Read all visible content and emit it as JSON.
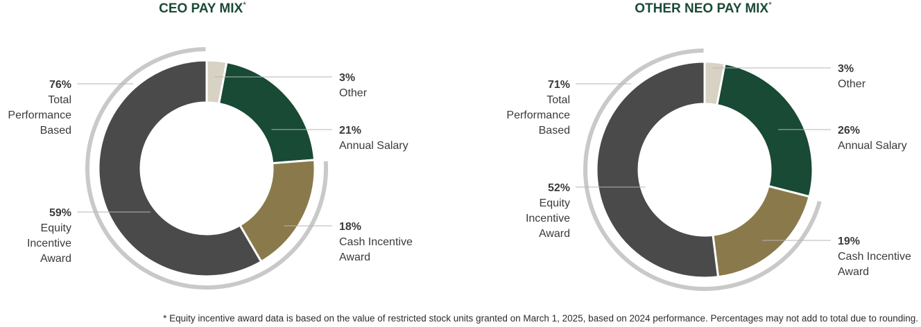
{
  "colors": {
    "title": "#1b4a36",
    "other": "#d8d2c4",
    "annual_salary": "#184a35",
    "cash_incentive": "#8a7a4b",
    "equity": "#4a4a4a",
    "arc": "#c9c9c9",
    "leader": "#b5b5b5",
    "text": "#3a3a3a"
  },
  "chart_data": [
    {
      "type": "pie",
      "title": "CEO PAY MIX",
      "title_mark": "*",
      "slices": [
        {
          "label": "Other",
          "value": 3,
          "pct": "3%"
        },
        {
          "label": "Annual Salary",
          "value": 21,
          "pct": "21%"
        },
        {
          "label": "Cash Incentive Award",
          "value": 18,
          "pct": "18%"
        },
        {
          "label": "Equity Incentive Award",
          "value": 59,
          "pct": "59%"
        }
      ],
      "performance_based": {
        "label": "Total Performance Based",
        "value": 76,
        "pct": "76%"
      }
    },
    {
      "type": "pie",
      "title": "OTHER NEO PAY MIX",
      "title_mark": "*",
      "slices": [
        {
          "label": "Other",
          "value": 3,
          "pct": "3%"
        },
        {
          "label": "Annual Salary",
          "value": 26,
          "pct": "26%"
        },
        {
          "label": "Cash Incentive Award",
          "value": 19,
          "pct": "19%"
        },
        {
          "label": "Equity Incentive Award",
          "value": 52,
          "pct": "52%"
        }
      ],
      "performance_based": {
        "label": "Total Performance Based",
        "value": 71,
        "pct": "71%"
      }
    }
  ],
  "footnote": "* Equity incentive award data is based on the value of restricted stock units granted on March 1, 2025, based on 2024 performance. Percentages may not add to total due to rounding."
}
